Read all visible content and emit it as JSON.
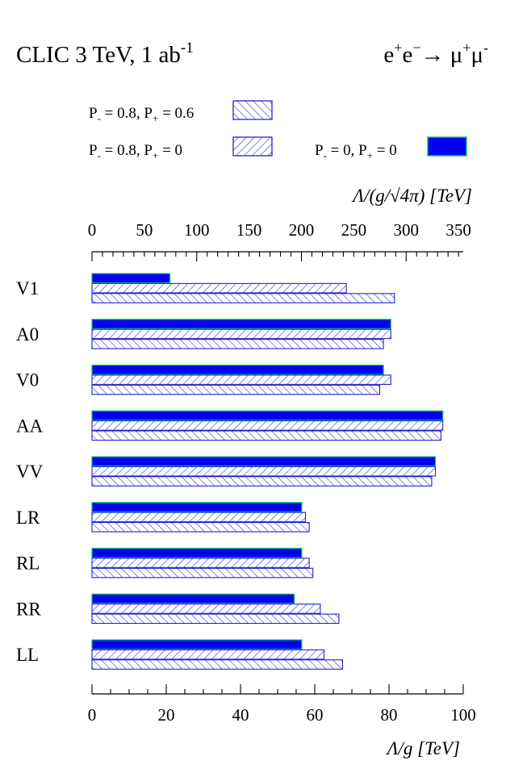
{
  "chart_data": {
    "type": "bar",
    "orientation": "horizontal",
    "title_left": "CLIC 3 TeV, 1 ab",
    "title_left_sup": "-1",
    "title_right": {
      "parts": [
        "e",
        "+",
        "e",
        "−",
        "→ μ",
        "+",
        "μ",
        "-"
      ]
    },
    "categories": [
      "V1",
      "A0",
      "V0",
      "AA",
      "VV",
      "LR",
      "RL",
      "RR",
      "LL"
    ],
    "series": [
      {
        "name": "P_ = 0, P+ = 0",
        "label_parts": [
          "P",
          "-",
          " = 0,  P",
          "+",
          " = 0"
        ],
        "fill": "solid",
        "color": "#0000ee",
        "edge_color": "#00cc66",
        "values": [
          21,
          80.5,
          78.5,
          94.5,
          92.5,
          56.5,
          56.5,
          54.5,
          56.5
        ]
      },
      {
        "name": "P_ = 0.8, P+ = 0",
        "label_parts": [
          "P",
          "-",
          " = 0.8,  P",
          "+",
          " = 0"
        ],
        "fill": "hatch-forward",
        "color": "#2222cc",
        "values": [
          68.5,
          80.5,
          80.5,
          94.5,
          92.5,
          57.5,
          58.5,
          61.5,
          62.5
        ]
      },
      {
        "name": "P_ = 0.8, P+ = 0.6",
        "label_parts": [
          "P",
          "-",
          " = 0.8,  P",
          "+",
          " = 0.6"
        ],
        "fill": "hatch-backward",
        "color": "#2222cc",
        "values": [
          81.5,
          78.5,
          77.5,
          94,
          91.5,
          58.5,
          59.5,
          66.5,
          67.5
        ]
      }
    ],
    "bottom_axis": {
      "label": "Λ/g [TeV]",
      "range": [
        0,
        100
      ],
      "ticks": [
        "0",
        "20",
        "40",
        "60",
        "80",
        "100"
      ]
    },
    "top_axis": {
      "label": "Λ/(g/√4π) [TeV]",
      "range": [
        0,
        354.5
      ],
      "ticks": [
        "0",
        "50",
        "100",
        "150",
        "200",
        "250",
        "300",
        "350"
      ]
    },
    "grid": false,
    "legend_placement": "top"
  }
}
